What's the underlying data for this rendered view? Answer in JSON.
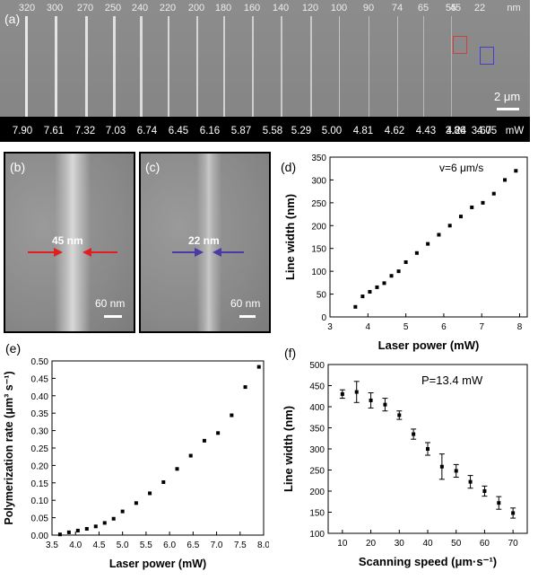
{
  "panel_a": {
    "letter": "(a)",
    "width_labels": [
      "320",
      "300",
      "270",
      "250",
      "240",
      "220",
      "200",
      "180",
      "160",
      "140",
      "120",
      "100",
      "90",
      "74",
      "65",
      "55",
      "45",
      "22"
    ],
    "width_unit": "nm",
    "power_labels": [
      "7.90",
      "7.61",
      "7.32",
      "7.03",
      "6.74",
      "6.45",
      "6.16",
      "5.87",
      "5.58",
      "5.29",
      "5.00",
      "4.81",
      "4.62",
      "4.43",
      "4.24",
      "4.05",
      "3.86",
      "3.67"
    ],
    "power_unit": "mW",
    "scale_bar": "2 μm"
  },
  "panel_b": {
    "letter": "(b)",
    "measure": "45 nm",
    "scale_bar": "60 nm",
    "frame_color": "#e03030"
  },
  "panel_c": {
    "letter": "(c)",
    "measure": "22 nm",
    "scale_bar": "60 nm",
    "frame_color": "#6a5ac8"
  },
  "chart_data": [
    {
      "panel": "(d)",
      "type": "scatter",
      "annotation": "v=6 μm/s",
      "xlabel": "Laser power (mW)",
      "ylabel": "Line width (nm)",
      "xlim": [
        3,
        8.2
      ],
      "ylim": [
        0,
        350
      ],
      "xticks": [
        3,
        4,
        5,
        6,
        7,
        8
      ],
      "yticks": [
        0,
        50,
        100,
        150,
        200,
        250,
        300,
        350
      ],
      "x": [
        3.67,
        3.86,
        4.05,
        4.24,
        4.43,
        4.62,
        4.81,
        5.0,
        5.29,
        5.58,
        5.87,
        6.16,
        6.45,
        6.74,
        7.03,
        7.32,
        7.61,
        7.9
      ],
      "y": [
        22,
        45,
        55,
        65,
        74,
        90,
        100,
        120,
        140,
        160,
        180,
        200,
        220,
        240,
        250,
        270,
        300,
        320
      ]
    },
    {
      "panel": "(e)",
      "type": "scatter",
      "xlabel": "Laser power (mW)",
      "ylabel": "Polymerization rate (μm³ s⁻¹)",
      "xlim": [
        3.5,
        8.0
      ],
      "ylim": [
        0,
        0.5
      ],
      "xticks": [
        "3.5",
        "4.0",
        "4.5",
        "5.0",
        "5.5",
        "6.0",
        "6.5",
        "7.0",
        "7.5",
        "8.0"
      ],
      "yticks": [
        "0.00",
        "0.05",
        "0.10",
        "0.15",
        "0.20",
        "0.25",
        "0.30",
        "0.35",
        "0.40",
        "0.45",
        "0.50"
      ],
      "x": [
        3.67,
        3.86,
        4.05,
        4.24,
        4.43,
        4.62,
        4.81,
        5.0,
        5.29,
        5.58,
        5.87,
        6.16,
        6.45,
        6.74,
        7.03,
        7.32,
        7.61,
        7.9
      ],
      "y": [
        0.002,
        0.008,
        0.013,
        0.018,
        0.025,
        0.035,
        0.047,
        0.068,
        0.092,
        0.12,
        0.152,
        0.19,
        0.228,
        0.271,
        0.293,
        0.344,
        0.425,
        0.483
      ]
    },
    {
      "panel": "(f)",
      "type": "scatter",
      "annotation": "P=13.4 mW",
      "xlabel": "Scanning speed (μm·s⁻¹)",
      "ylabel": "Line width (nm)",
      "xlim": [
        5,
        75
      ],
      "ylim": [
        100,
        500
      ],
      "xticks": [
        10,
        20,
        30,
        40,
        50,
        60,
        70
      ],
      "yticks": [
        100,
        150,
        200,
        250,
        300,
        350,
        400,
        450,
        500
      ],
      "x": [
        10,
        15,
        20,
        25,
        30,
        35,
        40,
        45,
        50,
        55,
        60,
        65,
        70
      ],
      "y": [
        430,
        435,
        415,
        405,
        380,
        335,
        300,
        258,
        248,
        222,
        200,
        172,
        148
      ],
      "err": [
        10,
        25,
        18,
        15,
        10,
        12,
        15,
        30,
        15,
        15,
        12,
        15,
        12
      ]
    }
  ]
}
